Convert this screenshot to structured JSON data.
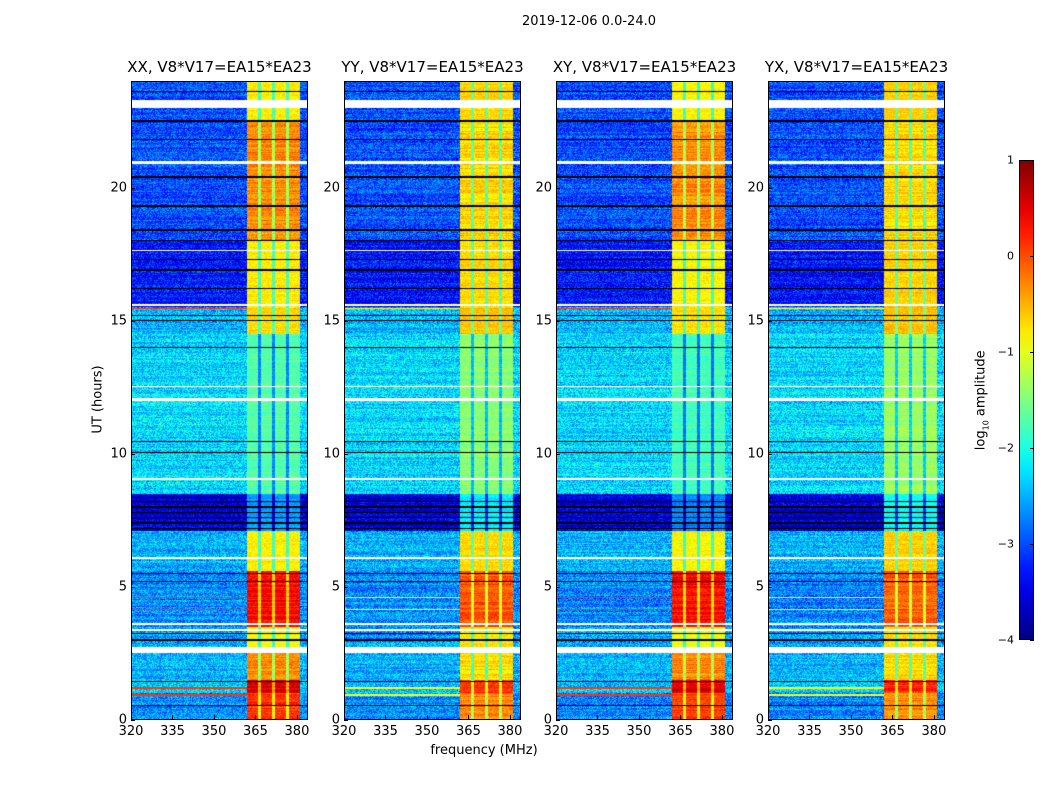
{
  "figure": {
    "suptitle": "2019-12-06 0.0-24.0",
    "xlabel": "frequency (MHz)",
    "ylabel": "UT (hours)"
  },
  "chart_data": {
    "type": "heatmap",
    "colormap": "jet",
    "panels": [
      {
        "title": "XX, V8*V17=EA15*EA23",
        "gain": 1.0
      },
      {
        "title": "YY, V8*V17=EA15*EA23",
        "gain": 0.85
      },
      {
        "title": "XY, V8*V17=EA15*EA23",
        "gain": 1.05
      },
      {
        "title": "YX, V8*V17=EA15*EA23",
        "gain": 0.8
      }
    ],
    "x": {
      "label": "frequency (MHz)",
      "range": [
        320,
        384
      ],
      "ticks": [
        "320",
        "335",
        "350",
        "365",
        "380"
      ],
      "tick_values": [
        320,
        335,
        350,
        365,
        380
      ]
    },
    "y": {
      "label": "UT (hours)",
      "range": [
        0,
        24
      ],
      "ticks": [
        "0",
        "5",
        "10",
        "15",
        "20"
      ],
      "tick_values": [
        0,
        5,
        10,
        15,
        20
      ]
    },
    "colorbar": {
      "label_main": "log",
      "label_sub": "10",
      "label_rest": " amplitude",
      "range": [
        -4,
        1
      ],
      "ticks": [
        "1",
        "0",
        "−1",
        "−2",
        "−3",
        "−4"
      ],
      "tick_values": [
        1,
        0,
        -1,
        -2,
        -3,
        -4
      ]
    },
    "band": {
      "freq_range": [
        362,
        381
      ],
      "subband_edges": [
        366.5,
        371.5,
        376.5
      ]
    },
    "time_segments": [
      {
        "t": [
          0,
          1.0
        ],
        "background": -2.7,
        "band": 0.1
      },
      {
        "t": [
          1.0,
          1.5
        ],
        "background": -2.4,
        "band": 0.55
      },
      {
        "t": [
          1.5,
          2.5
        ],
        "background": -2.5,
        "band": -0.3
      },
      {
        "t": [
          2.75,
          3.5
        ],
        "background": -2.6,
        "band": -0.9
      },
      {
        "t": [
          3.5,
          5.6
        ],
        "background": -2.7,
        "band": 0.35
      },
      {
        "t": [
          5.6,
          7.1
        ],
        "background": -2.5,
        "band": -0.8
      },
      {
        "t": [
          7.1,
          8.5
        ],
        "background": -3.6,
        "band": -2.6
      },
      {
        "t": [
          8.5,
          14.5
        ],
        "background": -2.3,
        "band": -1.7
      },
      {
        "t": [
          14.5,
          15.5
        ],
        "background": -2.5,
        "band": -0.7
      },
      {
        "t": [
          15.5,
          18.0
        ],
        "background": -3.3,
        "band": -0.8
      },
      {
        "t": [
          18.0,
          22.5
        ],
        "background": -3.0,
        "band": -0.3
      },
      {
        "t": [
          22.5,
          24.0
        ],
        "background": -3.0,
        "band": -0.8
      }
    ],
    "rfi_lines_hours": [
      4.6,
      4.15,
      1.2,
      0.95,
      15.45
    ],
    "flagged_white_hours": [
      [
        2.55,
        2.75
      ],
      [
        3.35,
        3.42
      ],
      [
        3.58,
        3.65
      ],
      [
        6.05,
        6.12
      ],
      [
        9.0,
        9.1
      ],
      [
        12.0,
        12.08
      ],
      [
        12.5,
        12.55
      ],
      [
        15.55,
        15.62
      ],
      [
        17.6,
        17.67
      ],
      [
        20.9,
        21.0
      ],
      [
        23.0,
        23.3
      ]
    ],
    "flagged_black_hours": [
      0.55,
      1.45,
      3.0,
      3.25,
      5.2,
      5.5,
      7.2,
      7.4,
      7.6,
      7.8,
      8.0,
      8.2,
      10.05,
      10.45,
      14.0,
      15.0,
      15.2,
      16.2,
      16.9,
      17.3,
      18.0,
      18.4,
      19.3,
      20.4,
      21.8,
      22.5,
      23.6
    ]
  }
}
